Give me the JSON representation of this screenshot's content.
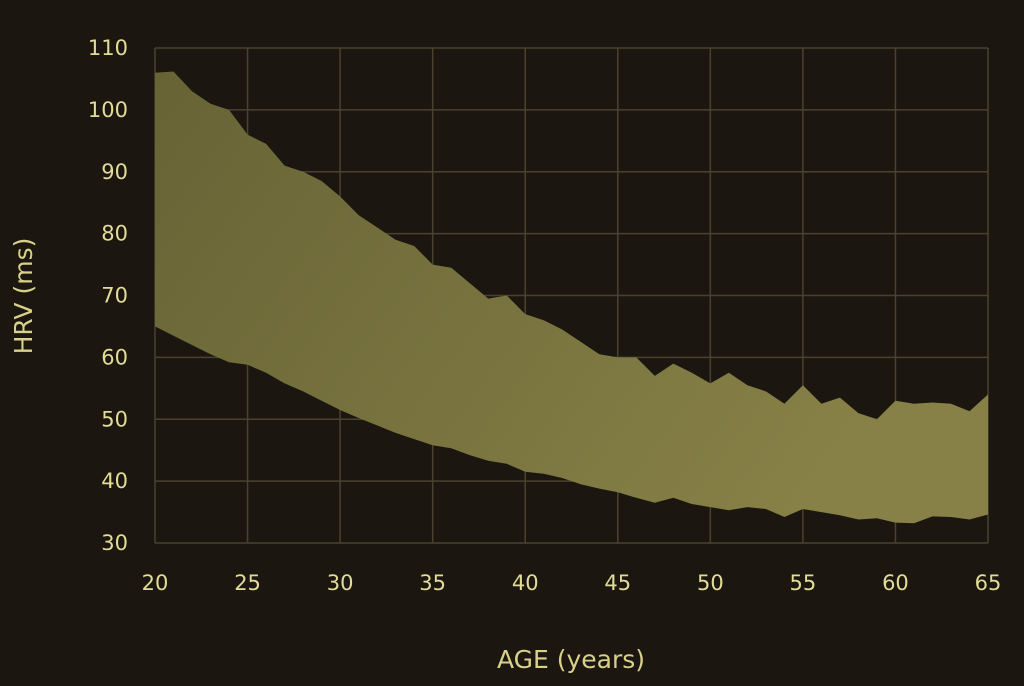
{
  "chart_data": {
    "type": "area",
    "title": "",
    "xlabel": "AGE (years)",
    "ylabel": "HRV (ms)",
    "xlim": [
      20,
      65
    ],
    "ylim": [
      30,
      110
    ],
    "xticks": [
      20,
      25,
      30,
      35,
      40,
      45,
      50,
      55,
      60,
      65
    ],
    "yticks": [
      30,
      40,
      50,
      60,
      70,
      80,
      90,
      100,
      110
    ],
    "grid": true,
    "legend": "none",
    "x": [
      20,
      21,
      22,
      23,
      24,
      25,
      26,
      27,
      28,
      29,
      30,
      31,
      32,
      33,
      34,
      35,
      36,
      37,
      38,
      39,
      40,
      41,
      42,
      43,
      44,
      45,
      46,
      47,
      48,
      49,
      50,
      51,
      52,
      53,
      54,
      55,
      56,
      57,
      58,
      59,
      60,
      61,
      62,
      63,
      64,
      65
    ],
    "series": [
      {
        "role": "upper",
        "values": [
          106,
          106.2,
          103,
          101,
          100,
          96,
          94.5,
          91,
          90,
          88.5,
          86,
          83,
          81,
          79,
          78,
          75,
          74.5,
          72,
          69.5,
          70,
          67,
          66,
          64.5,
          62.5,
          60.5,
          60,
          60,
          57,
          59,
          57.5,
          55.8,
          57.5,
          55.5,
          54.5,
          52.5,
          55.5,
          52.5,
          53.5,
          51,
          50,
          53,
          52.5,
          52.7,
          52.5,
          51.3,
          54
        ]
      },
      {
        "role": "lower",
        "values": [
          65,
          63.5,
          62,
          60.5,
          59.2,
          58.8,
          57.5,
          55.8,
          54.5,
          53,
          51.5,
          50.2,
          49,
          47.8,
          46.8,
          45.8,
          45.3,
          44.2,
          43.3,
          42.8,
          41.5,
          41.2,
          40.5,
          39.5,
          38.8,
          38.2,
          37.3,
          36.5,
          37.3,
          36.3,
          35.8,
          35.3,
          35.8,
          35.5,
          34.2,
          35.5,
          35,
          34.5,
          33.8,
          34,
          33.3,
          33.2,
          34.3,
          34.2,
          33.8,
          34.6
        ]
      }
    ],
    "colors": {
      "background": "#1b1710",
      "band_start": "#676335",
      "band_end": "#878147",
      "grid": "#48432f",
      "text": "#e3dc98"
    }
  }
}
